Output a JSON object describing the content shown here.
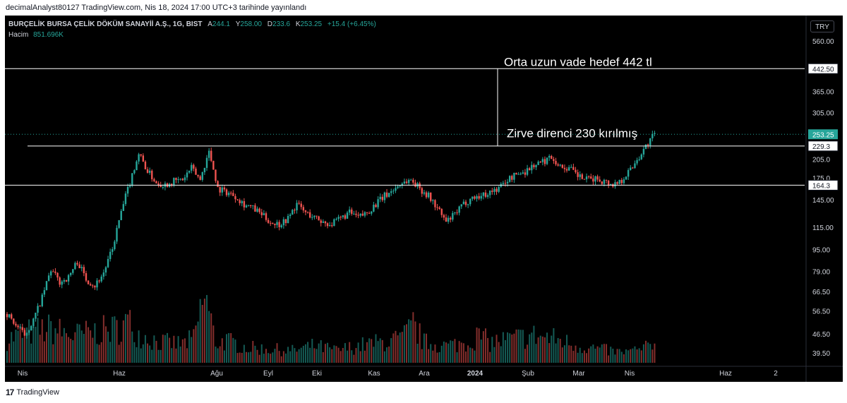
{
  "header": {
    "publish_line": "decimalAnalyst80127 TradingView.com, Nis 18, 2024 17:00 UTC+3 tarihinde yayınlandı"
  },
  "legend": {
    "symbol": "BURÇELİK BURSA ÇELİK DÖKÜM SANAYİİ A.Ş., 1G, BIST",
    "open_label": "A",
    "open": "244.1",
    "high_label": "Y",
    "high": "258.00",
    "low_label": "D",
    "low": "233.6",
    "close_label": "K",
    "close": "253.25",
    "change": "+15.4 (+6.45%)",
    "volume_label": "Hacim",
    "volume": "851.696K"
  },
  "currency_button": "TRY",
  "footer": {
    "brand": "TradingView"
  },
  "colors": {
    "up": "#26a69a",
    "down": "#ef5350",
    "background": "#000000",
    "line": "#ffffff",
    "price_badge": "#26a69a"
  },
  "chart_data": {
    "type": "candlestick",
    "scale": "log",
    "y_ticks": [
      560.0,
      442.5,
      365.0,
      305.0,
      253.25,
      229.3,
      205.0,
      175.0,
      164.3,
      145.0,
      115.0,
      95.0,
      79.0,
      66.5,
      56.5,
      46.5,
      39.5
    ],
    "y_tick_labels": [
      "560.00",
      "442.50",
      "365.00",
      "305.00",
      "253.25",
      "229.3",
      "205.0",
      "175.0",
      "164.3",
      "145.00",
      "115.00",
      "95.00",
      "79.00",
      "66.50",
      "56.50",
      "46.50",
      "39.50"
    ],
    "x_ticks": [
      "Nis",
      "Haz",
      "Ağu",
      "Eyl",
      "Eki",
      "Kas",
      "Ara",
      "2024",
      "Şub",
      "Mar",
      "Nis",
      "Haz",
      "2"
    ],
    "horizontal_lines": [
      {
        "value": 442.5,
        "label": "442.50"
      },
      {
        "value": 229.3,
        "label": "229.3"
      },
      {
        "value": 164.3,
        "label": "164.3"
      }
    ],
    "annotations": [
      "Orta uzun vade hedef 442 tl",
      "Zirve direnci 230 kırılmış"
    ],
    "last_price": {
      "value": 253.25,
      "label": "253.25"
    },
    "price_path": [
      [
        0,
        55
      ],
      [
        4,
        50
      ],
      [
        8,
        46
      ],
      [
        12,
        52
      ],
      [
        16,
        63
      ],
      [
        20,
        80
      ],
      [
        24,
        72
      ],
      [
        28,
        75
      ],
      [
        32,
        86
      ],
      [
        36,
        74
      ],
      [
        40,
        70
      ],
      [
        44,
        78
      ],
      [
        48,
        95
      ],
      [
        52,
        130
      ],
      [
        56,
        168
      ],
      [
        60,
        215
      ],
      [
        64,
        185
      ],
      [
        68,
        168
      ],
      [
        72,
        165
      ],
      [
        76,
        170
      ],
      [
        80,
        172
      ],
      [
        84,
        190
      ],
      [
        88,
        172
      ],
      [
        92,
        218
      ],
      [
        96,
        160
      ],
      [
        100,
        155
      ],
      [
        104,
        150
      ],
      [
        108,
        140
      ],
      [
        112,
        135
      ],
      [
        116,
        128
      ],
      [
        120,
        120
      ],
      [
        124,
        118
      ],
      [
        128,
        124
      ],
      [
        132,
        140
      ],
      [
        136,
        130
      ],
      [
        140,
        125
      ],
      [
        144,
        120
      ],
      [
        148,
        118
      ],
      [
        152,
        124
      ],
      [
        156,
        130
      ],
      [
        160,
        125
      ],
      [
        164,
        130
      ],
      [
        168,
        140
      ],
      [
        172,
        150
      ],
      [
        176,
        158
      ],
      [
        180,
        168
      ],
      [
        184,
        172
      ],
      [
        188,
        160
      ],
      [
        192,
        150
      ],
      [
        196,
        135
      ],
      [
        200,
        120
      ],
      [
        204,
        128
      ],
      [
        208,
        140
      ],
      [
        212,
        148
      ],
      [
        216,
        150
      ],
      [
        220,
        155
      ],
      [
        224,
        160
      ],
      [
        228,
        172
      ],
      [
        232,
        180
      ],
      [
        236,
        185
      ],
      [
        240,
        195
      ],
      [
        244,
        200
      ],
      [
        248,
        210
      ],
      [
        252,
        192
      ],
      [
        256,
        190
      ],
      [
        260,
        178
      ],
      [
        264,
        172
      ],
      [
        268,
        174
      ],
      [
        272,
        170
      ],
      [
        276,
        165
      ],
      [
        280,
        172
      ],
      [
        284,
        188
      ],
      [
        288,
        210
      ],
      [
        292,
        235
      ],
      [
        295,
        253
      ]
    ],
    "volume_path": [
      [
        0,
        0.35
      ],
      [
        10,
        0.45
      ],
      [
        20,
        0.5
      ],
      [
        30,
        0.4
      ],
      [
        40,
        0.45
      ],
      [
        50,
        0.5
      ],
      [
        55,
        0.6
      ],
      [
        60,
        0.42
      ],
      [
        70,
        0.3
      ],
      [
        80,
        0.28
      ],
      [
        85,
        0.35
      ],
      [
        90,
        1.0
      ],
      [
        95,
        0.3
      ],
      [
        100,
        0.32
      ],
      [
        110,
        0.22
      ],
      [
        120,
        0.2
      ],
      [
        130,
        0.18
      ],
      [
        140,
        0.25
      ],
      [
        150,
        0.18
      ],
      [
        160,
        0.25
      ],
      [
        170,
        0.3
      ],
      [
        180,
        0.35
      ],
      [
        185,
        0.55
      ],
      [
        190,
        0.3
      ],
      [
        200,
        0.25
      ],
      [
        210,
        0.3
      ],
      [
        215,
        0.4
      ],
      [
        220,
        0.3
      ],
      [
        230,
        0.35
      ],
      [
        240,
        0.4
      ],
      [
        250,
        0.35
      ],
      [
        260,
        0.25
      ],
      [
        270,
        0.2
      ],
      [
        280,
        0.15
      ],
      [
        290,
        0.2
      ],
      [
        295,
        0.3
      ]
    ]
  }
}
